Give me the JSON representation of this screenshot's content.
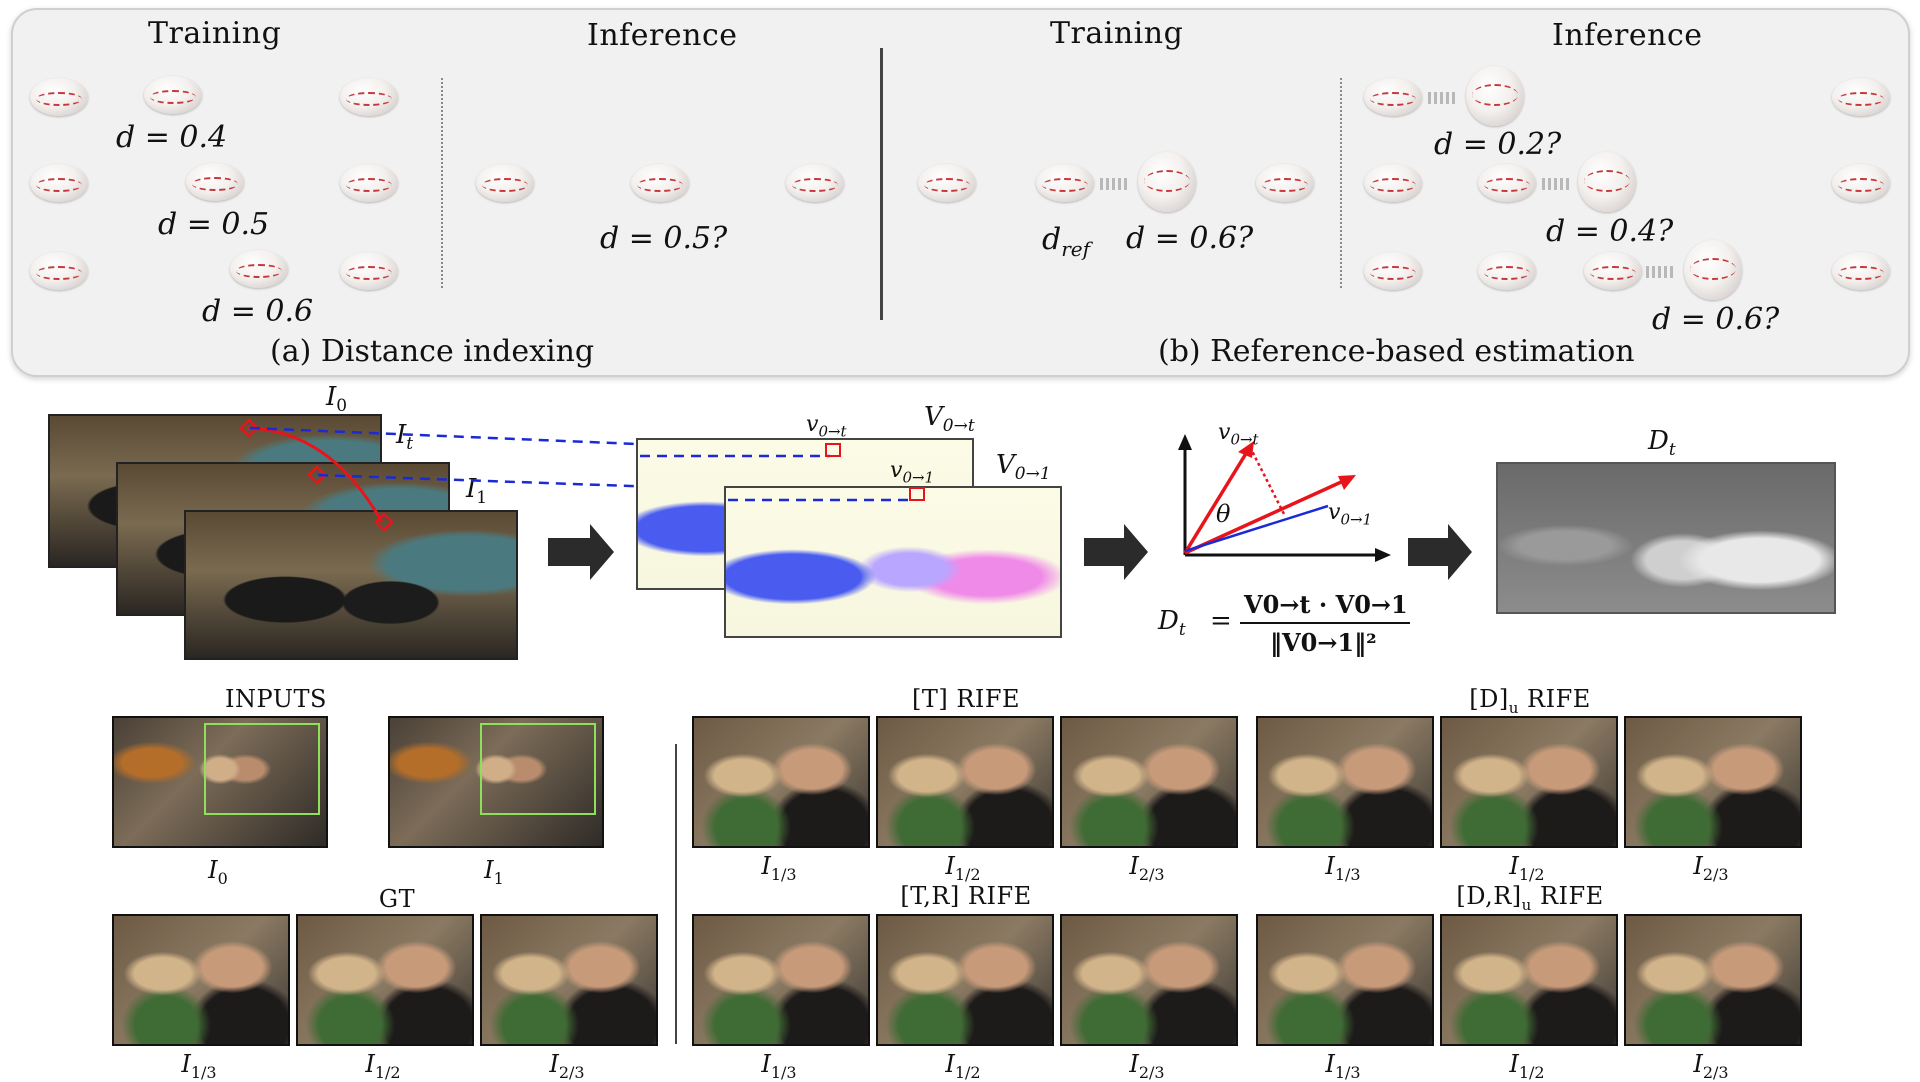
{
  "panel_a": {
    "training": "Training",
    "inference": "Inference",
    "d1": "d = 0.4",
    "d2": "d = 0.5",
    "d3": "d = 0.6",
    "d_inf": "d = 0.5?",
    "caption": "(a) Distance indexing"
  },
  "panel_b": {
    "training": "Training",
    "inference": "Inference",
    "d_ref": "d",
    "d_ref_sub": "ref",
    "d_train": "d = 0.6?",
    "d1": "d = 0.2?",
    "d2": "d = 0.4?",
    "d3": "d = 0.6?",
    "caption": "(b) Reference-based estimation"
  },
  "pipeline": {
    "I0": "I",
    "I0_sub": "0",
    "It": "I",
    "It_sub": "t",
    "I1": "I",
    "I1_sub": "1",
    "V0t": "V",
    "V0t_sub": "0→t",
    "V01": "V",
    "V01_sub": "0→1",
    "v0t": "v",
    "v0t_sub": "0→t",
    "v01": "v",
    "v01_sub": "0→1",
    "vec_v0t": "v",
    "vec_v0t_sub": "0→t",
    "vec_v01": "v",
    "vec_v01_sub": "0→1",
    "theta": "θ",
    "Dt": "D",
    "Dt_sub": "t",
    "formula_lhs": "D",
    "formula_lhs_sub": "t",
    "formula_eq": "=",
    "formula_num": "V0→t · V0→1",
    "formula_den": "‖V0→1‖²"
  },
  "results": {
    "inputs_title": "INPUTS",
    "gt_title": "GT",
    "t_rife": "[T] RIFE",
    "d_rife": "[D]",
    "d_rife_sub": "u",
    "d_rife_tail": " RIFE",
    "tr_rife": "[T,R] RIFE",
    "dr_rife": "[D,R]",
    "dr_rife_sub": "u",
    "dr_rife_tail": " RIFE",
    "input_labels": [
      {
        "main": "I",
        "sub": "0"
      },
      {
        "main": "I",
        "sub": "1"
      }
    ],
    "frame_labels": [
      {
        "main": "I",
        "sub": "1/3"
      },
      {
        "main": "I",
        "sub": "1/2"
      },
      {
        "main": "I",
        "sub": "2/3"
      }
    ]
  }
}
